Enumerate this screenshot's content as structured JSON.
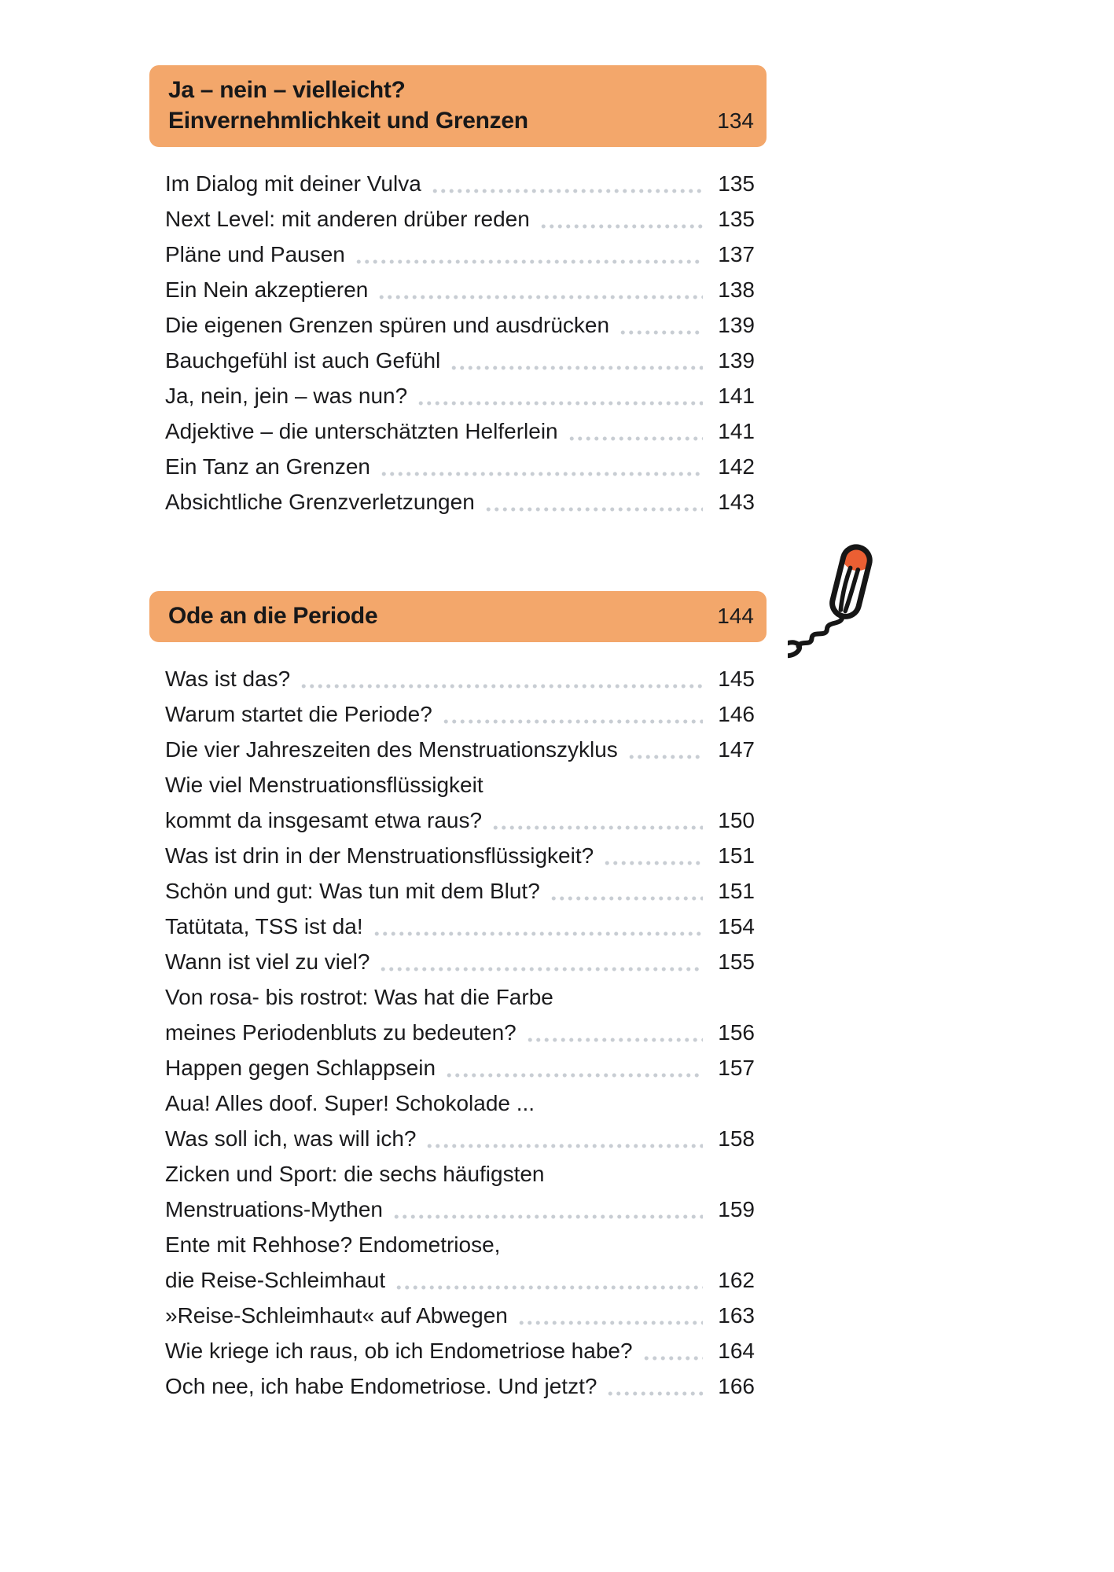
{
  "colors": {
    "header_background": "#f3a76b",
    "body_text": "#1b1b1d",
    "dot_leader": "#c8cdd3",
    "tampon_tip": "#eb5f33",
    "tampon_outline": "#161616"
  },
  "illustration": {
    "name": "tampon-icon"
  },
  "sections": [
    {
      "title_lines": [
        "Ja – nein – vielleicht?",
        "Einvernehmlichkeit und Grenzen"
      ],
      "page": "134",
      "entries": [
        {
          "lines": [
            "Im Dialog mit deiner Vulva"
          ],
          "page": "135"
        },
        {
          "lines": [
            "Next Level: mit anderen drüber reden"
          ],
          "page": "135"
        },
        {
          "lines": [
            "Pläne und Pausen"
          ],
          "page": "137"
        },
        {
          "lines": [
            "Ein Nein akzeptieren"
          ],
          "page": "138"
        },
        {
          "lines": [
            "Die eigenen Grenzen spüren und ausdrücken"
          ],
          "page": "139"
        },
        {
          "lines": [
            "Bauchgefühl ist auch Gefühl"
          ],
          "page": "139"
        },
        {
          "lines": [
            "Ja, nein, jein – was nun?"
          ],
          "page": "141"
        },
        {
          "lines": [
            "Adjektive – die unterschätzten Helferlein"
          ],
          "page": "141"
        },
        {
          "lines": [
            "Ein Tanz an Grenzen"
          ],
          "page": "142"
        },
        {
          "lines": [
            "Absichtliche Grenzverletzungen"
          ],
          "page": "143"
        }
      ]
    },
    {
      "title_lines": [
        "Ode an die Periode"
      ],
      "page": "144",
      "entries": [
        {
          "lines": [
            "Was ist das?"
          ],
          "page": "145"
        },
        {
          "lines": [
            "Warum startet die Periode?"
          ],
          "page": "146"
        },
        {
          "lines": [
            "Die vier Jahreszeiten des Menstruationszyklus"
          ],
          "page": "147"
        },
        {
          "lines": [
            "Wie viel Menstruationsflüssigkeit",
            "kommt da insgesamt etwa raus?"
          ],
          "page": "150"
        },
        {
          "lines": [
            "Was ist drin in der Menstruationsflüssigkeit?"
          ],
          "page": "151"
        },
        {
          "lines": [
            "Schön und gut: Was tun mit dem Blut?"
          ],
          "page": "151"
        },
        {
          "lines": [
            "Tatütata, TSS ist da!"
          ],
          "page": "154"
        },
        {
          "lines": [
            "Wann ist viel zu viel?"
          ],
          "page": "155"
        },
        {
          "lines": [
            "Von rosa- bis rostrot: Was hat die Farbe",
            "meines Periodenbluts zu bedeuten?"
          ],
          "page": "156"
        },
        {
          "lines": [
            "Happen gegen Schlappsein"
          ],
          "page": "157"
        },
        {
          "lines": [
            "Aua! Alles doof. Super! Schokolade ...",
            "Was soll ich, was will ich?"
          ],
          "page": "158"
        },
        {
          "lines": [
            "Zicken und Sport: die sechs häufigsten",
            "Menstruations-Mythen"
          ],
          "page": "159"
        },
        {
          "lines": [
            "Ente mit Rehhose? Endometriose,",
            "die Reise-Schleimhaut"
          ],
          "page": "162"
        },
        {
          "lines": [
            "»Reise-Schleimhaut« auf Abwegen"
          ],
          "page": "163"
        },
        {
          "lines": [
            "Wie kriege ich raus, ob ich Endometriose habe?"
          ],
          "page": "164"
        },
        {
          "lines": [
            "Och nee, ich habe Endometriose. Und jetzt?"
          ],
          "page": "166"
        }
      ]
    }
  ]
}
